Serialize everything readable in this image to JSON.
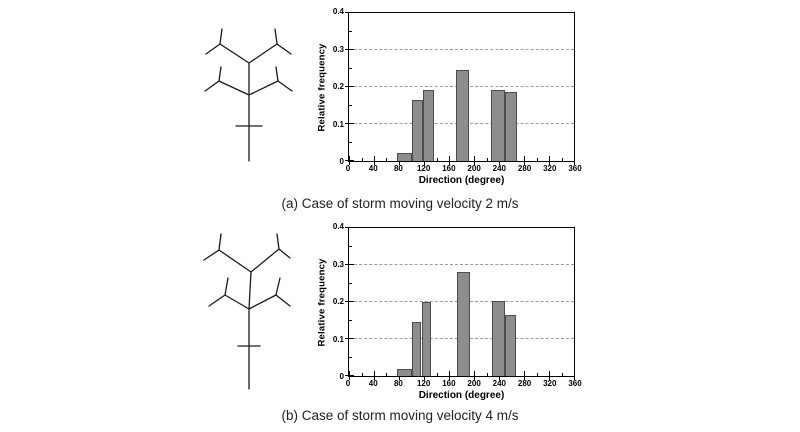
{
  "colors": {
    "background": "#ffffff",
    "bar_fill": "#8d8d8d",
    "bar_edge": "#4d4d4d",
    "gridline": "#9c9c9c",
    "axis": "#000000",
    "caption_text": "#222222",
    "diagram_line": "#1a1a1a"
  },
  "diagrams": [
    {
      "name": "storm-track-network-sketch-a"
    },
    {
      "name": "storm-track-network-sketch-b"
    }
  ],
  "chart_data": [
    {
      "type": "bar",
      "panel": "a",
      "caption": "(a) Case of storm moving velocity 2 m/s",
      "title": "",
      "xlabel": "Direction (degree)",
      "ylabel": "Relative frequency",
      "xlim": [
        0,
        360
      ],
      "ylim": [
        0,
        0.4
      ],
      "x_major_ticks": [
        0,
        40,
        80,
        120,
        160,
        200,
        240,
        280,
        320,
        360
      ],
      "x_minor_step": 20,
      "y_major_ticks": [
        0,
        0.1,
        0.2,
        0.3,
        0.4
      ],
      "y_minor_step": 0.05,
      "gridlines_y": [
        0.1,
        0.2,
        0.3
      ],
      "grid": "horizontal dashed",
      "legend": "none",
      "bars": [
        {
          "from": 77,
          "to": 100,
          "value": 0.023
        },
        {
          "from": 100,
          "to": 118,
          "value": 0.164
        },
        {
          "from": 118,
          "to": 136,
          "value": 0.191
        },
        {
          "from": 171,
          "to": 192,
          "value": 0.246
        },
        {
          "from": 227,
          "to": 250,
          "value": 0.191
        },
        {
          "from": 250,
          "to": 269,
          "value": 0.187
        }
      ]
    },
    {
      "type": "bar",
      "panel": "b",
      "caption": "(b) Case of storm moving velocity 4 m/s",
      "title": "",
      "xlabel": "Direction (degree)",
      "ylabel": "Relative frequency",
      "xlim": [
        0,
        360
      ],
      "ylim": [
        0,
        0.4
      ],
      "x_major_ticks": [
        0,
        40,
        80,
        120,
        160,
        200,
        240,
        280,
        320,
        360
      ],
      "x_minor_step": 20,
      "y_major_ticks": [
        0,
        0.1,
        0.2,
        0.3,
        0.4
      ],
      "y_minor_step": 0.05,
      "gridlines_y": [
        0.1,
        0.2,
        0.3
      ],
      "grid": "horizontal dashed",
      "legend": "none",
      "bars": [
        {
          "from": 77,
          "to": 100,
          "value": 0.018
        },
        {
          "from": 100,
          "to": 116,
          "value": 0.146
        },
        {
          "from": 116,
          "to": 132,
          "value": 0.2
        },
        {
          "from": 173,
          "to": 194,
          "value": 0.28
        },
        {
          "from": 229,
          "to": 249,
          "value": 0.202
        },
        {
          "from": 249,
          "to": 268,
          "value": 0.164
        }
      ]
    }
  ]
}
